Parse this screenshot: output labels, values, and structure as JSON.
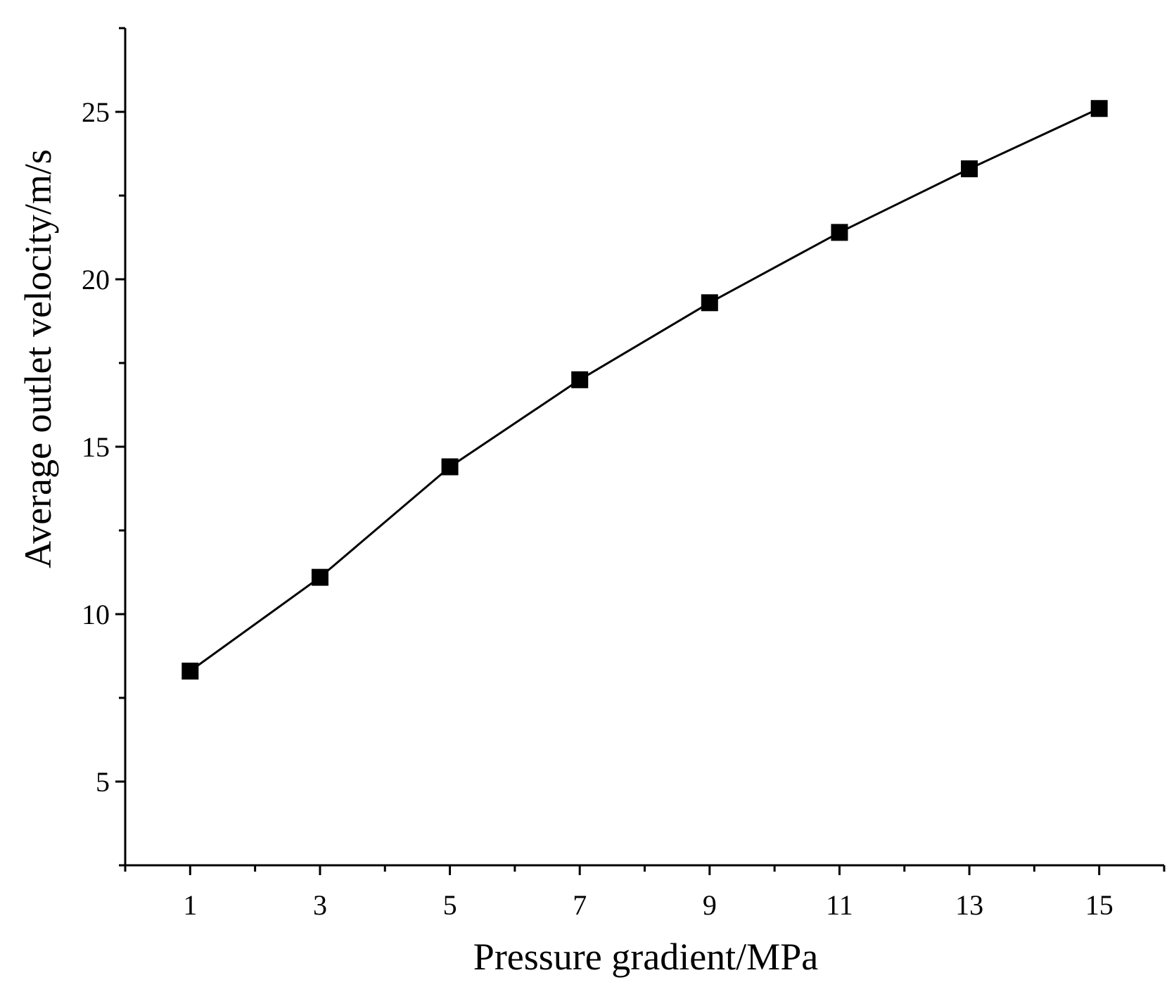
{
  "chart_data": {
    "type": "line",
    "title": "",
    "xlabel": "Pressure gradient/MPa",
    "ylabel": "Average outlet velocity/m/s",
    "x": [
      1,
      3,
      5,
      7,
      9,
      11,
      13,
      15
    ],
    "series": [
      {
        "values": [
          8.3,
          11.1,
          14.4,
          17.0,
          19.3,
          21.4,
          23.3,
          25.1
        ],
        "marker": "square",
        "color": "#000000"
      }
    ],
    "xlim": [
      0,
      16
    ],
    "ylim": [
      2.5,
      27.5
    ],
    "xticks_major": [
      1,
      3,
      5,
      7,
      9,
      11,
      13,
      15
    ],
    "xticks_minor": [
      0,
      2,
      4,
      6,
      8,
      10,
      12,
      14,
      16
    ],
    "yticks_major": [
      5,
      10,
      15,
      20,
      25
    ],
    "yticks_minor": [
      2.5,
      7.5,
      12.5,
      17.5,
      22.5,
      27.5
    ],
    "xtick_labels": [
      "1",
      "3",
      "5",
      "7",
      "9",
      "11",
      "13",
      "15"
    ],
    "ytick_labels": [
      "5",
      "10",
      "15",
      "20",
      "25"
    ],
    "grid": false,
    "legend": "none"
  }
}
